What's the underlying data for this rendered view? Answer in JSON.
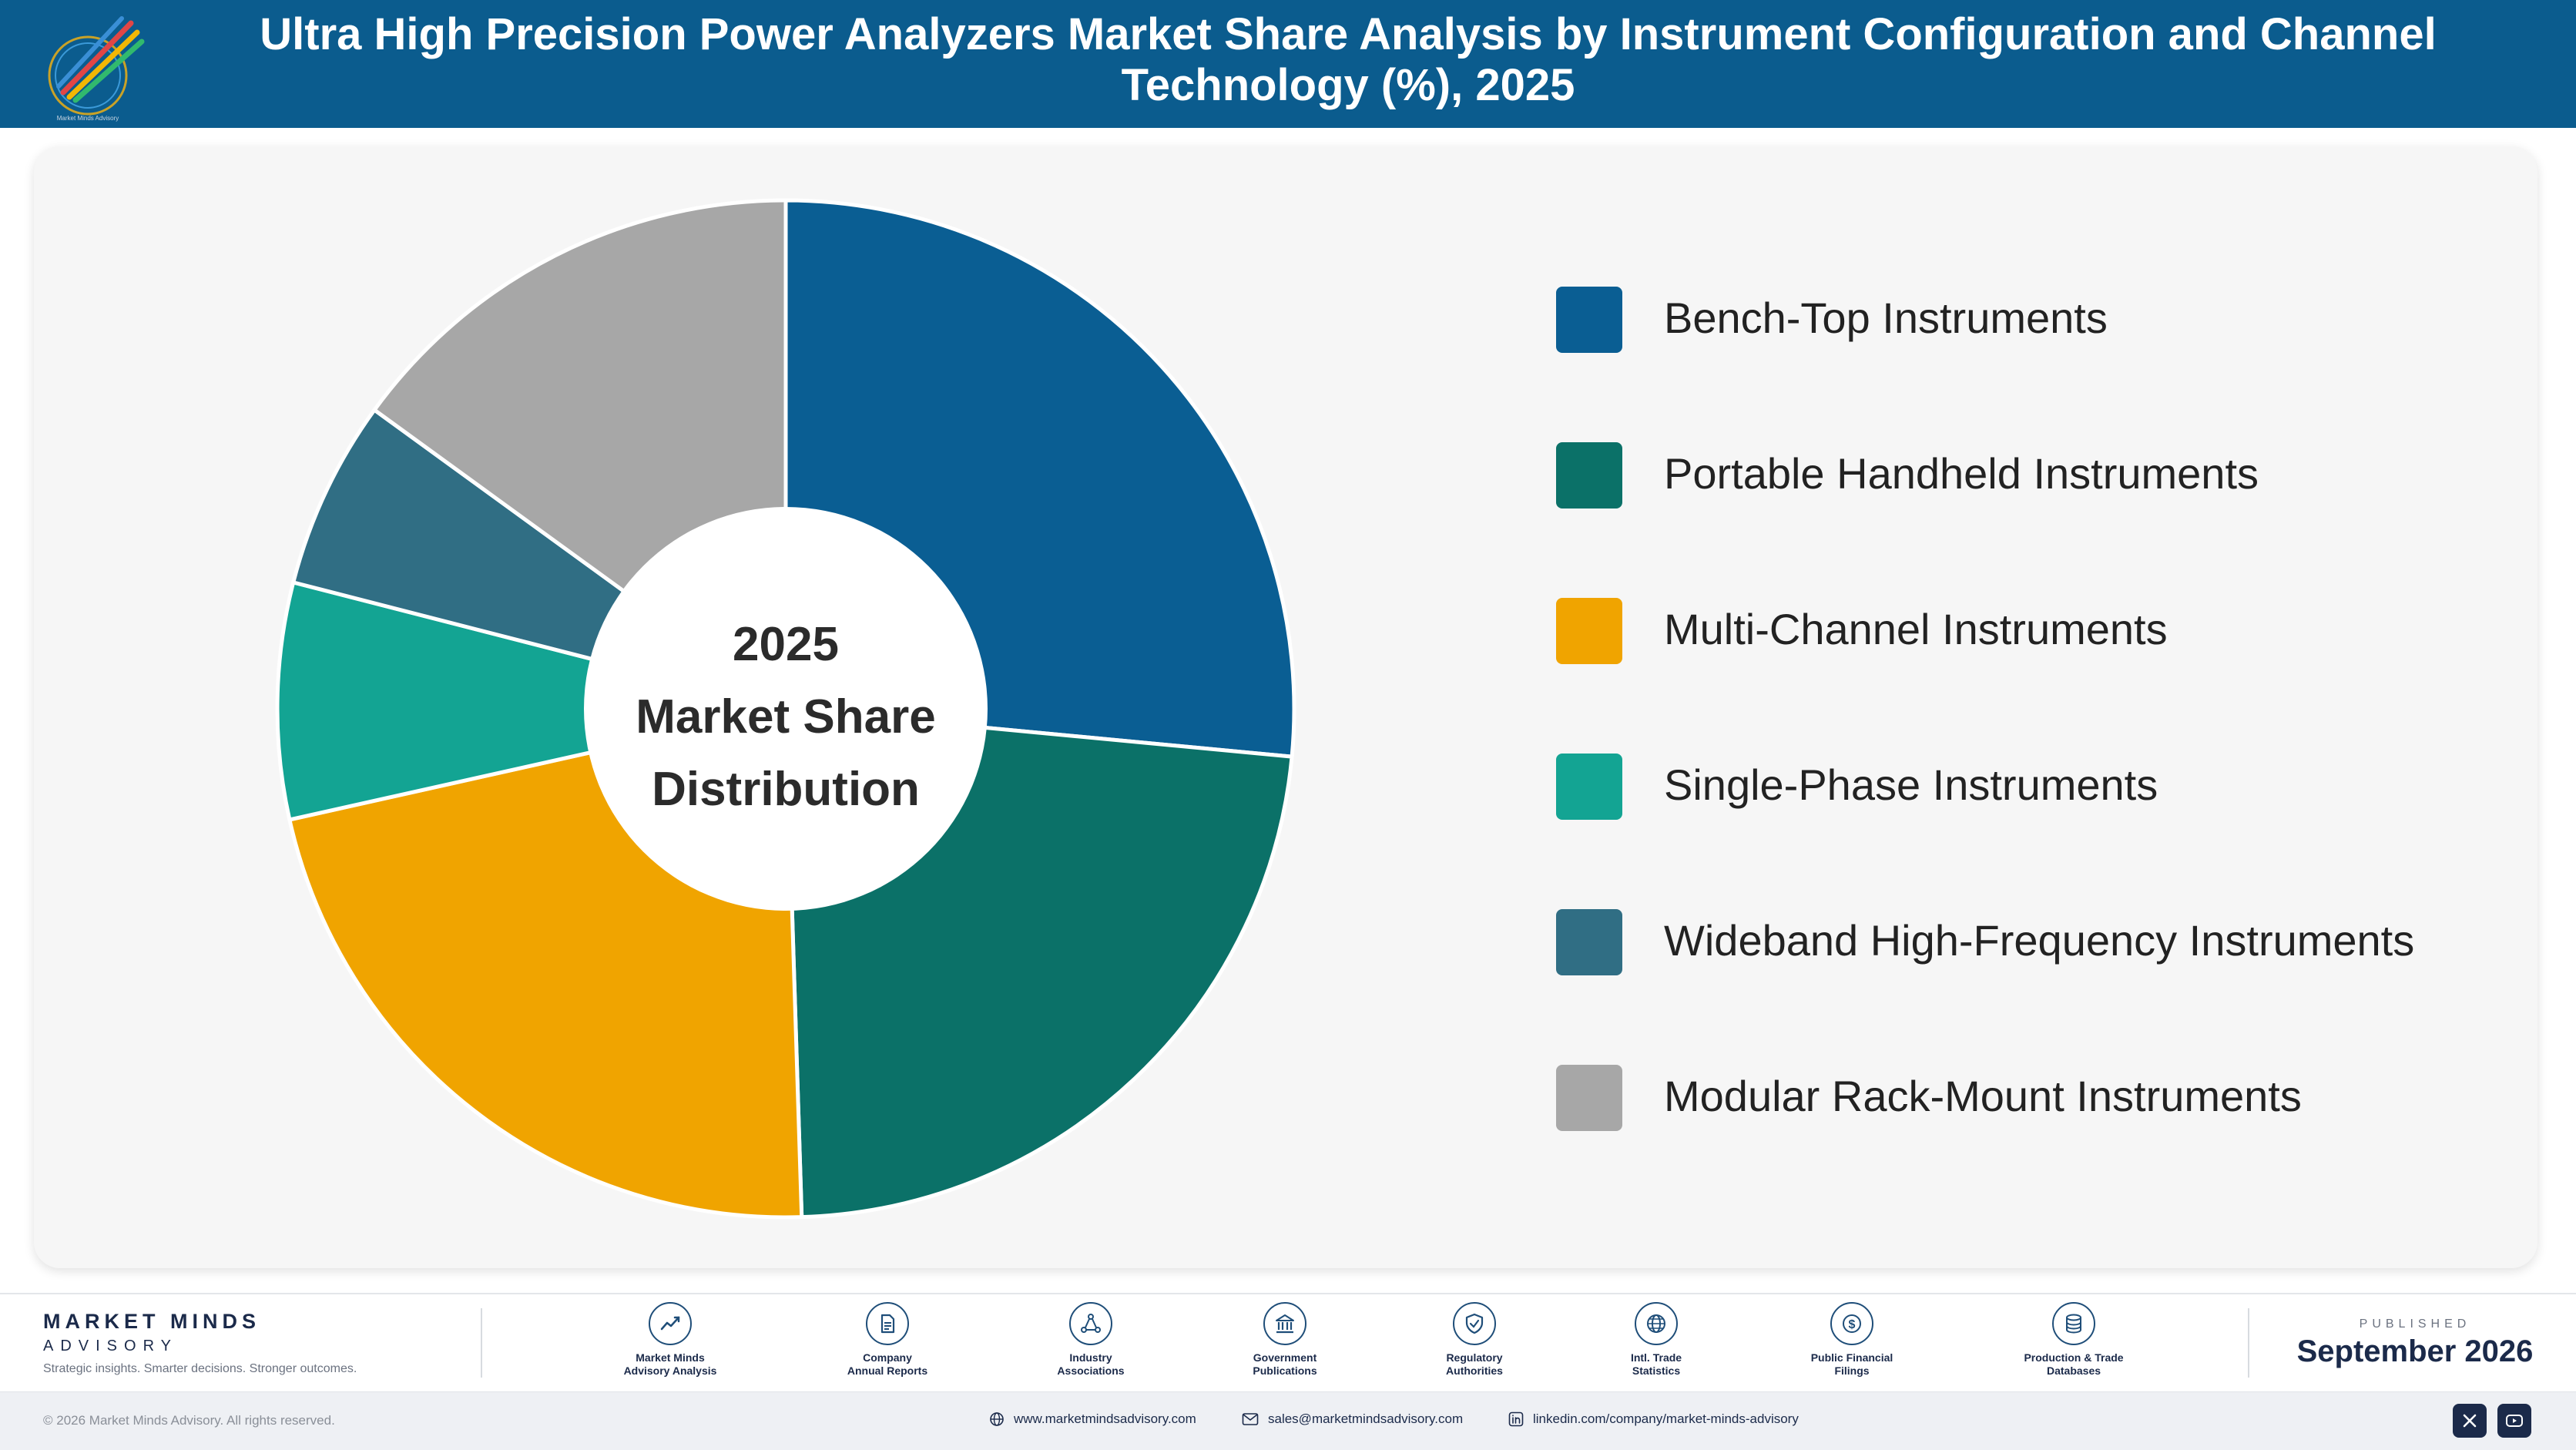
{
  "header": {
    "title": "Ultra High Precision Power Analyzers Market Share Analysis by Instrument Configuration and Channel Technology (%), 2025",
    "logo_icon": "market-minds-logo"
  },
  "chart_data": {
    "type": "pie",
    "style": "donut",
    "title": "Ultra High Precision Power Analyzers Market Share Analysis by Instrument Configuration and Channel Technology (%), 2025",
    "center_label": [
      "2025",
      "Market Share",
      "Distribution"
    ],
    "legend_position": "right",
    "unit": "%",
    "categories": [
      "Bench-Top Instruments",
      "Portable Handheld Instruments",
      "Multi-Channel Instruments",
      "Single-Phase Instruments",
      "Wideband High-Frequency Instruments",
      "Modular Rack-Mount Instruments"
    ],
    "values": [
      26.5,
      23.0,
      22.0,
      7.5,
      6.0,
      15.0
    ],
    "colors": [
      "#0a5e93",
      "#0b7168",
      "#f0a400",
      "#13a493",
      "#306e84",
      "#a7a7a7"
    ]
  },
  "footer": {
    "brand_name": "MARKET MINDS",
    "brand_sub": "ADVISORY",
    "brand_tagline": "Strategic insights. Smarter decisions. Stronger outcomes.",
    "sources": [
      {
        "label_1": "Market Minds",
        "label_2": "Advisory Analysis",
        "icon": "trend-chart-icon"
      },
      {
        "label_1": "Company",
        "label_2": "Annual Reports",
        "icon": "document-icon"
      },
      {
        "label_1": "Industry",
        "label_2": "Associations",
        "icon": "network-icon"
      },
      {
        "label_1": "Government",
        "label_2": "Publications",
        "icon": "government-building-icon"
      },
      {
        "label_1": "Regulatory",
        "label_2": "Authorities",
        "icon": "shield-check-icon"
      },
      {
        "label_1": "Intl. Trade",
        "label_2": "Statistics",
        "icon": "globe-icon"
      },
      {
        "label_1": "Public Financial",
        "label_2": "Filings",
        "icon": "dollar-coin-icon"
      },
      {
        "label_1": "Production & Trade",
        "label_2": "Databases",
        "icon": "database-icon"
      }
    ],
    "published_label": "PUBLISHED",
    "published_date": "September 2026"
  },
  "bottom_bar": {
    "copyright": "© 2026 Market Minds Advisory. All rights reserved.",
    "website": "www.marketmindsadvisory.com",
    "email": "sales@marketmindsadvisory.com",
    "linkedin": "linkedin.com/company/market-minds-advisory",
    "social_icons": [
      "x-icon",
      "youtube-icon"
    ]
  }
}
